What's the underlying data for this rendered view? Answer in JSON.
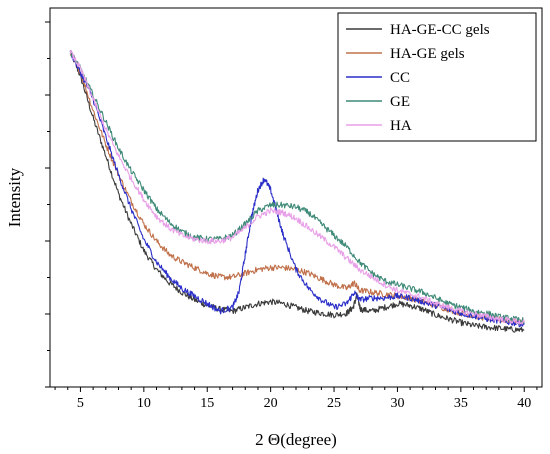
{
  "chart_data": {
    "type": "line",
    "title": "",
    "xlabel": "2 Θ(degree)",
    "ylabel": "Intensity",
    "xlim": [
      2.6,
      41.4
    ],
    "ylim": [
      0,
      100
    ],
    "x_ticks": [
      5,
      10,
      15,
      20,
      25,
      30,
      35,
      40
    ],
    "y_axis_tick_labels": "none",
    "legend_position": "top-right",
    "series": [
      {
        "name": "HA-GE-CC gels",
        "color": "#3a3a3a",
        "points": [
          [
            4.2,
            88.5
          ],
          [
            5,
            82
          ],
          [
            6,
            71
          ],
          [
            7,
            61
          ],
          [
            8,
            51
          ],
          [
            9,
            43
          ],
          [
            10,
            36
          ],
          [
            11,
            31
          ],
          [
            12,
            27.5
          ],
          [
            13,
            25
          ],
          [
            14,
            23
          ],
          [
            15,
            21.5
          ],
          [
            16,
            20.5
          ],
          [
            17,
            20
          ],
          [
            18,
            21
          ],
          [
            19,
            22
          ],
          [
            20,
            22.5
          ],
          [
            21,
            22
          ],
          [
            22,
            21
          ],
          [
            23,
            20
          ],
          [
            24,
            19.5
          ],
          [
            25,
            19
          ],
          [
            26,
            19.5
          ],
          [
            26.5,
            21
          ],
          [
            26.8,
            24
          ],
          [
            27.1,
            20.5
          ],
          [
            28,
            20
          ],
          [
            29,
            21
          ],
          [
            30,
            22
          ],
          [
            31,
            21.5
          ],
          [
            32,
            20.5
          ],
          [
            33,
            19
          ],
          [
            34,
            18
          ],
          [
            35,
            17
          ],
          [
            36,
            16.2
          ],
          [
            37,
            15.8
          ],
          [
            38,
            15.5
          ],
          [
            39,
            15.2
          ],
          [
            40,
            15
          ]
        ]
      },
      {
        "name": "HA-GE gels",
        "color": "#c0704a",
        "points": [
          [
            4.2,
            88.5
          ],
          [
            5,
            83
          ],
          [
            6,
            73
          ],
          [
            7,
            64
          ],
          [
            8,
            56
          ],
          [
            9,
            49
          ],
          [
            10,
            43
          ],
          [
            11,
            38.5
          ],
          [
            12,
            35
          ],
          [
            13,
            33
          ],
          [
            14,
            31.5
          ],
          [
            15,
            30
          ],
          [
            16,
            29
          ],
          [
            17,
            29
          ],
          [
            18,
            30
          ],
          [
            19,
            31
          ],
          [
            20,
            31.5
          ],
          [
            21,
            31.5
          ],
          [
            22,
            31
          ],
          [
            23,
            30
          ],
          [
            24,
            28.5
          ],
          [
            25,
            27
          ],
          [
            26,
            26
          ],
          [
            26.6,
            27.5
          ],
          [
            27,
            25.5
          ],
          [
            28,
            25
          ],
          [
            29,
            24.5
          ],
          [
            30,
            24
          ],
          [
            31,
            23.5
          ],
          [
            32,
            22.5
          ],
          [
            33,
            21.5
          ],
          [
            34,
            20.5
          ],
          [
            35,
            19.5
          ],
          [
            36,
            18.8
          ],
          [
            37,
            18.2
          ],
          [
            38,
            17.8
          ],
          [
            39,
            17.4
          ],
          [
            40,
            17
          ]
        ]
      },
      {
        "name": "CC",
        "color": "#2a2ec8",
        "points": [
          [
            4.2,
            88.5
          ],
          [
            5,
            83
          ],
          [
            6,
            76
          ],
          [
            7,
            66
          ],
          [
            8,
            56
          ],
          [
            9,
            47
          ],
          [
            10,
            39
          ],
          [
            11,
            33
          ],
          [
            12,
            29
          ],
          [
            13,
            26
          ],
          [
            14,
            24
          ],
          [
            15,
            22
          ],
          [
            16,
            20
          ],
          [
            17,
            21
          ],
          [
            17.5,
            25
          ],
          [
            18,
            35
          ],
          [
            18.5,
            45
          ],
          [
            19,
            52
          ],
          [
            19.5,
            55
          ],
          [
            20,
            52
          ],
          [
            20.5,
            46
          ],
          [
            21,
            40
          ],
          [
            22,
            31
          ],
          [
            23,
            26
          ],
          [
            24,
            23
          ],
          [
            25,
            21
          ],
          [
            26,
            22
          ],
          [
            26.6,
            25
          ],
          [
            27,
            23
          ],
          [
            28,
            23.5
          ],
          [
            29,
            23.5
          ],
          [
            30,
            24
          ],
          [
            31,
            23.5
          ],
          [
            32,
            22.5
          ],
          [
            33,
            21.5
          ],
          [
            34,
            20.5
          ],
          [
            35,
            19.5
          ],
          [
            36,
            18.8
          ],
          [
            37,
            18
          ],
          [
            38,
            17.5
          ],
          [
            39,
            17
          ],
          [
            40,
            16.5
          ]
        ]
      },
      {
        "name": "GE",
        "color": "#3f8a78",
        "points": [
          [
            4.2,
            88.5
          ],
          [
            5,
            84
          ],
          [
            6,
            77
          ],
          [
            7,
            70
          ],
          [
            8,
            63
          ],
          [
            9,
            57
          ],
          [
            10,
            52
          ],
          [
            11,
            47
          ],
          [
            12,
            43.5
          ],
          [
            13,
            41
          ],
          [
            14,
            39.5
          ],
          [
            15,
            39
          ],
          [
            16,
            39
          ],
          [
            17,
            40
          ],
          [
            18,
            43
          ],
          [
            19,
            46.5
          ],
          [
            20,
            48
          ],
          [
            21,
            48
          ],
          [
            22,
            47.5
          ],
          [
            23,
            46
          ],
          [
            24,
            43
          ],
          [
            25,
            40
          ],
          [
            26,
            37
          ],
          [
            27,
            33
          ],
          [
            28,
            30
          ],
          [
            29,
            28
          ],
          [
            30,
            27
          ],
          [
            31,
            26
          ],
          [
            32,
            25
          ],
          [
            33,
            23.5
          ],
          [
            34,
            22
          ],
          [
            35,
            21
          ],
          [
            36,
            20
          ],
          [
            37,
            19.5
          ],
          [
            38,
            18.5
          ],
          [
            39,
            18
          ],
          [
            40,
            17.5
          ]
        ]
      },
      {
        "name": "HA",
        "color": "#e8a0e8",
        "points": [
          [
            4.2,
            88.5
          ],
          [
            5,
            84
          ],
          [
            6,
            76
          ],
          [
            7,
            68
          ],
          [
            8,
            61
          ],
          [
            9,
            55
          ],
          [
            10,
            49.5
          ],
          [
            11,
            45
          ],
          [
            12,
            42
          ],
          [
            13,
            40
          ],
          [
            14,
            39
          ],
          [
            15,
            38.5
          ],
          [
            16,
            38.5
          ],
          [
            17,
            39.5
          ],
          [
            18,
            42
          ],
          [
            19,
            45
          ],
          [
            20,
            46.5
          ],
          [
            21,
            46
          ],
          [
            22,
            44.5
          ],
          [
            23,
            42
          ],
          [
            24,
            39.5
          ],
          [
            25,
            37
          ],
          [
            26,
            34
          ],
          [
            27,
            31
          ],
          [
            28,
            29
          ],
          [
            29,
            27
          ],
          [
            30,
            25.5
          ],
          [
            31,
            24.5
          ],
          [
            32,
            23.5
          ],
          [
            33,
            22
          ],
          [
            34,
            21
          ],
          [
            35,
            20
          ],
          [
            36,
            19.3
          ],
          [
            37,
            18.6
          ],
          [
            38,
            18
          ],
          [
            39,
            17.5
          ],
          [
            40,
            17
          ]
        ]
      }
    ]
  }
}
